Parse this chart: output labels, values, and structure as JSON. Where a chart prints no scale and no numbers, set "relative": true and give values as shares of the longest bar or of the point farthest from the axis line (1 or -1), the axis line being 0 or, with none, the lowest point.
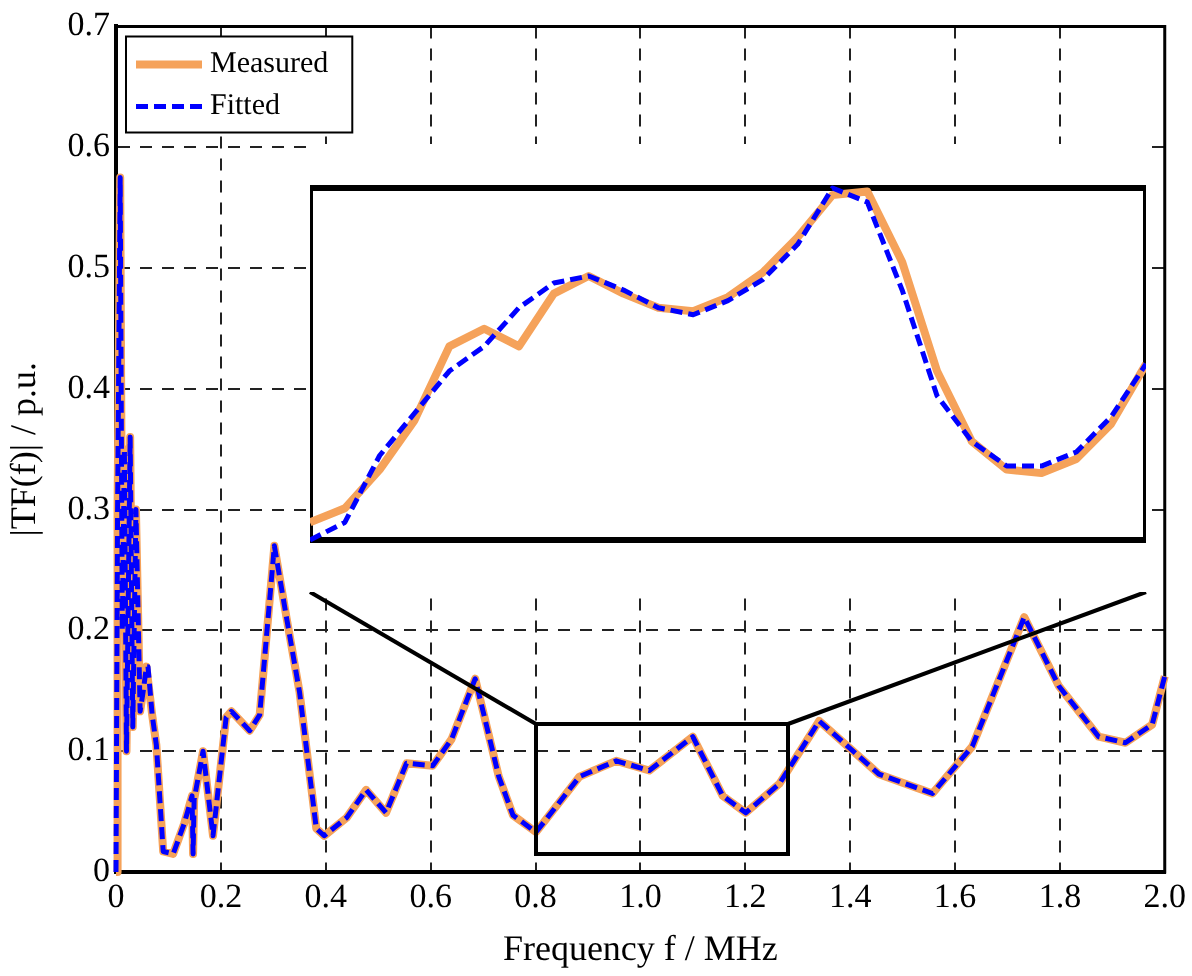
{
  "chart_data": [
    {
      "type": "line",
      "xlabel": "Frequency f / MHz",
      "ylabel": "|TF(f)| / p.u.",
      "xlim": [
        0,
        2
      ],
      "ylim": [
        0,
        0.7
      ],
      "xticks": [
        0,
        0.2,
        0.4,
        0.6,
        0.8,
        {
          "value": 1,
          "label": "1.0"
        },
        1.2,
        1.4,
        1.6,
        1.8,
        {
          "value": 2,
          "label": "2.0"
        }
      ],
      "yticks": [
        0,
        0.1,
        0.2,
        0.3,
        0.4,
        0.5,
        0.6,
        0.7
      ],
      "grid": true,
      "legend": "top left",
      "x": [
        0,
        0.003,
        0.008,
        0.012,
        0.016,
        0.02,
        0.027,
        0.032,
        0.038,
        0.046,
        0.052,
        0.058,
        0.061,
        0.069,
        0.077,
        0.09,
        0.109,
        0.13,
        0.145,
        0.147,
        0.149,
        0.166,
        0.185,
        0.21,
        0.22,
        0.255,
        0.274,
        0.302,
        0.325,
        0.35,
        0.382,
        0.397,
        0.44,
        0.477,
        0.515,
        0.554,
        0.604,
        0.64,
        0.685,
        0.73,
        0.757,
        0.801,
        0.884,
        0.954,
        1.017,
        1.1,
        1.157,
        1.201,
        1.265,
        1.341,
        1.455,
        1.557,
        1.633,
        1.732,
        1.798,
        1.874,
        1.925,
        1.976,
        2.0
      ],
      "series": [
        {
          "name": "Measured",
          "color": "#f5a25a",
          "line_style": "solid",
          "values": [
            0,
            0.3,
            0.575,
            0.2,
            0.35,
            0.1,
            0.36,
            0.12,
            0.3,
            0.133,
            0.15,
            0.17,
            0.17,
            0.13,
            0.105,
            0.017,
            0.015,
            0.04,
            0.063,
            0.015,
            0.06,
            0.1,
            0.03,
            0.128,
            0.133,
            0.117,
            0.13,
            0.27,
            0.211,
            0.149,
            0.036,
            0.03,
            0.045,
            0.068,
            0.049,
            0.09,
            0.088,
            0.11,
            0.16,
            0.079,
            0.047,
            0.033,
            0.079,
            0.092,
            0.084,
            0.112,
            0.063,
            0.049,
            0.073,
            0.125,
            0.081,
            0.065,
            0.104,
            0.211,
            0.154,
            0.112,
            0.107,
            0.122,
            0.162
          ]
        },
        {
          "name": "Fitted",
          "color": "#0000ff",
          "line_style": "dashed",
          "values": [
            0,
            0.3,
            0.575,
            0.2,
            0.35,
            0.1,
            0.36,
            0.12,
            0.3,
            0.133,
            0.15,
            0.17,
            0.17,
            0.13,
            0.105,
            0.017,
            0.015,
            0.04,
            0.063,
            0.015,
            0.06,
            0.1,
            0.03,
            0.128,
            0.133,
            0.117,
            0.13,
            0.27,
            0.211,
            0.149,
            0.036,
            0.03,
            0.045,
            0.068,
            0.049,
            0.09,
            0.088,
            0.11,
            0.16,
            0.079,
            0.047,
            0.033,
            0.079,
            0.092,
            0.084,
            0.112,
            0.063,
            0.049,
            0.073,
            0.125,
            0.081,
            0.065,
            0.104,
            0.211,
            0.154,
            0.112,
            0.107,
            0.122,
            0.162
          ]
        }
      ]
    },
    {
      "type": "line",
      "relative": true,
      "tick_labels": false,
      "categories": [
        null,
        null,
        null,
        null,
        null,
        null,
        null,
        null,
        null,
        null,
        null,
        null,
        null,
        null,
        null,
        null,
        null,
        null,
        null,
        null,
        null,
        null,
        null,
        null,
        null
      ],
      "series": [
        {
          "color": "#f5a25a",
          "line_style": "solid",
          "values": [
            0.05,
            0.09,
            0.2,
            0.34,
            0.55,
            0.6,
            0.55,
            0.7,
            0.75,
            0.7,
            0.66,
            0.65,
            0.69,
            0.76,
            0.86,
            0.98,
            0.99,
            0.79,
            0.48,
            0.28,
            0.2,
            0.19,
            0.23,
            0.33,
            0.5
          ]
        },
        {
          "color": "#0000ff",
          "line_style": "dashed",
          "values": [
            0,
            0.05,
            0.24,
            0.36,
            0.48,
            0.55,
            0.66,
            0.73,
            0.75,
            0.71,
            0.66,
            0.64,
            0.68,
            0.74,
            0.84,
            1,
            0.96,
            0.71,
            0.41,
            0.28,
            0.21,
            0.21,
            0.25,
            0.35,
            0.5
          ]
        }
      ]
    }
  ]
}
